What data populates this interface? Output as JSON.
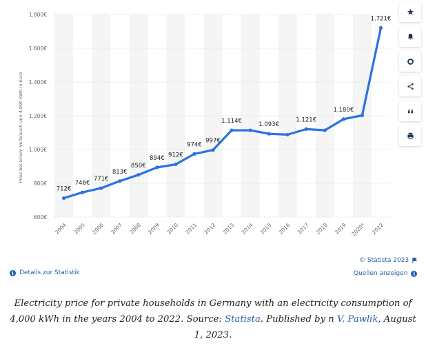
{
  "chart_data": {
    "type": "line",
    "categories": [
      "2004",
      "2005",
      "2006",
      "2007",
      "2008",
      "2009",
      "2010",
      "2011",
      "2012",
      "2013",
      "2014",
      "2015",
      "2016",
      "2017",
      "2018",
      "2019",
      "2020*",
      "2022"
    ],
    "values": [
      712,
      746,
      771,
      813,
      850,
      894,
      912,
      974,
      997,
      1114,
      1114,
      1093,
      1088,
      1121,
      1114,
      1180,
      1202,
      1721
    ],
    "data_labels": [
      "712€",
      "746€",
      "771€",
      "813€",
      "850€",
      "894€",
      "912€",
      "974€",
      "997€",
      "1.114€",
      "",
      "1.093€",
      "",
      "1.121€",
      "",
      "1.180€",
      "",
      "1.721€"
    ],
    "ylabel": "Preis bei einem Verbrauch von 4.000 kWh in Euro",
    "xlabel": "",
    "yticks": [
      600,
      800,
      1000,
      1200,
      1400,
      1600,
      1800
    ],
    "ytick_labels": [
      "600€",
      "800€",
      "1.000€",
      "1.200€",
      "1.400€",
      "1.600€",
      "1.800€"
    ],
    "ylim": [
      600,
      1800
    ],
    "grid": true,
    "line_color": "#2a72e3"
  },
  "toolbar": {
    "icons": [
      "star-icon",
      "bell-icon",
      "gear-icon",
      "share-icon",
      "quote-icon",
      "print-icon"
    ]
  },
  "footer": {
    "details_link": "Details zur Statistik",
    "copyright": "© Statista 2023",
    "sources_link": "Quellen anzeigen"
  },
  "caption": {
    "text1": "Electricity price for private households in Germany with an electricity consumption of 4,000 kWh in the years 2004 to 2022. Source: ",
    "source_link": "Statista",
    "text2": ". Published by n ",
    "author_link": "V. Pawlik",
    "text3": ", August 1, 2023."
  }
}
